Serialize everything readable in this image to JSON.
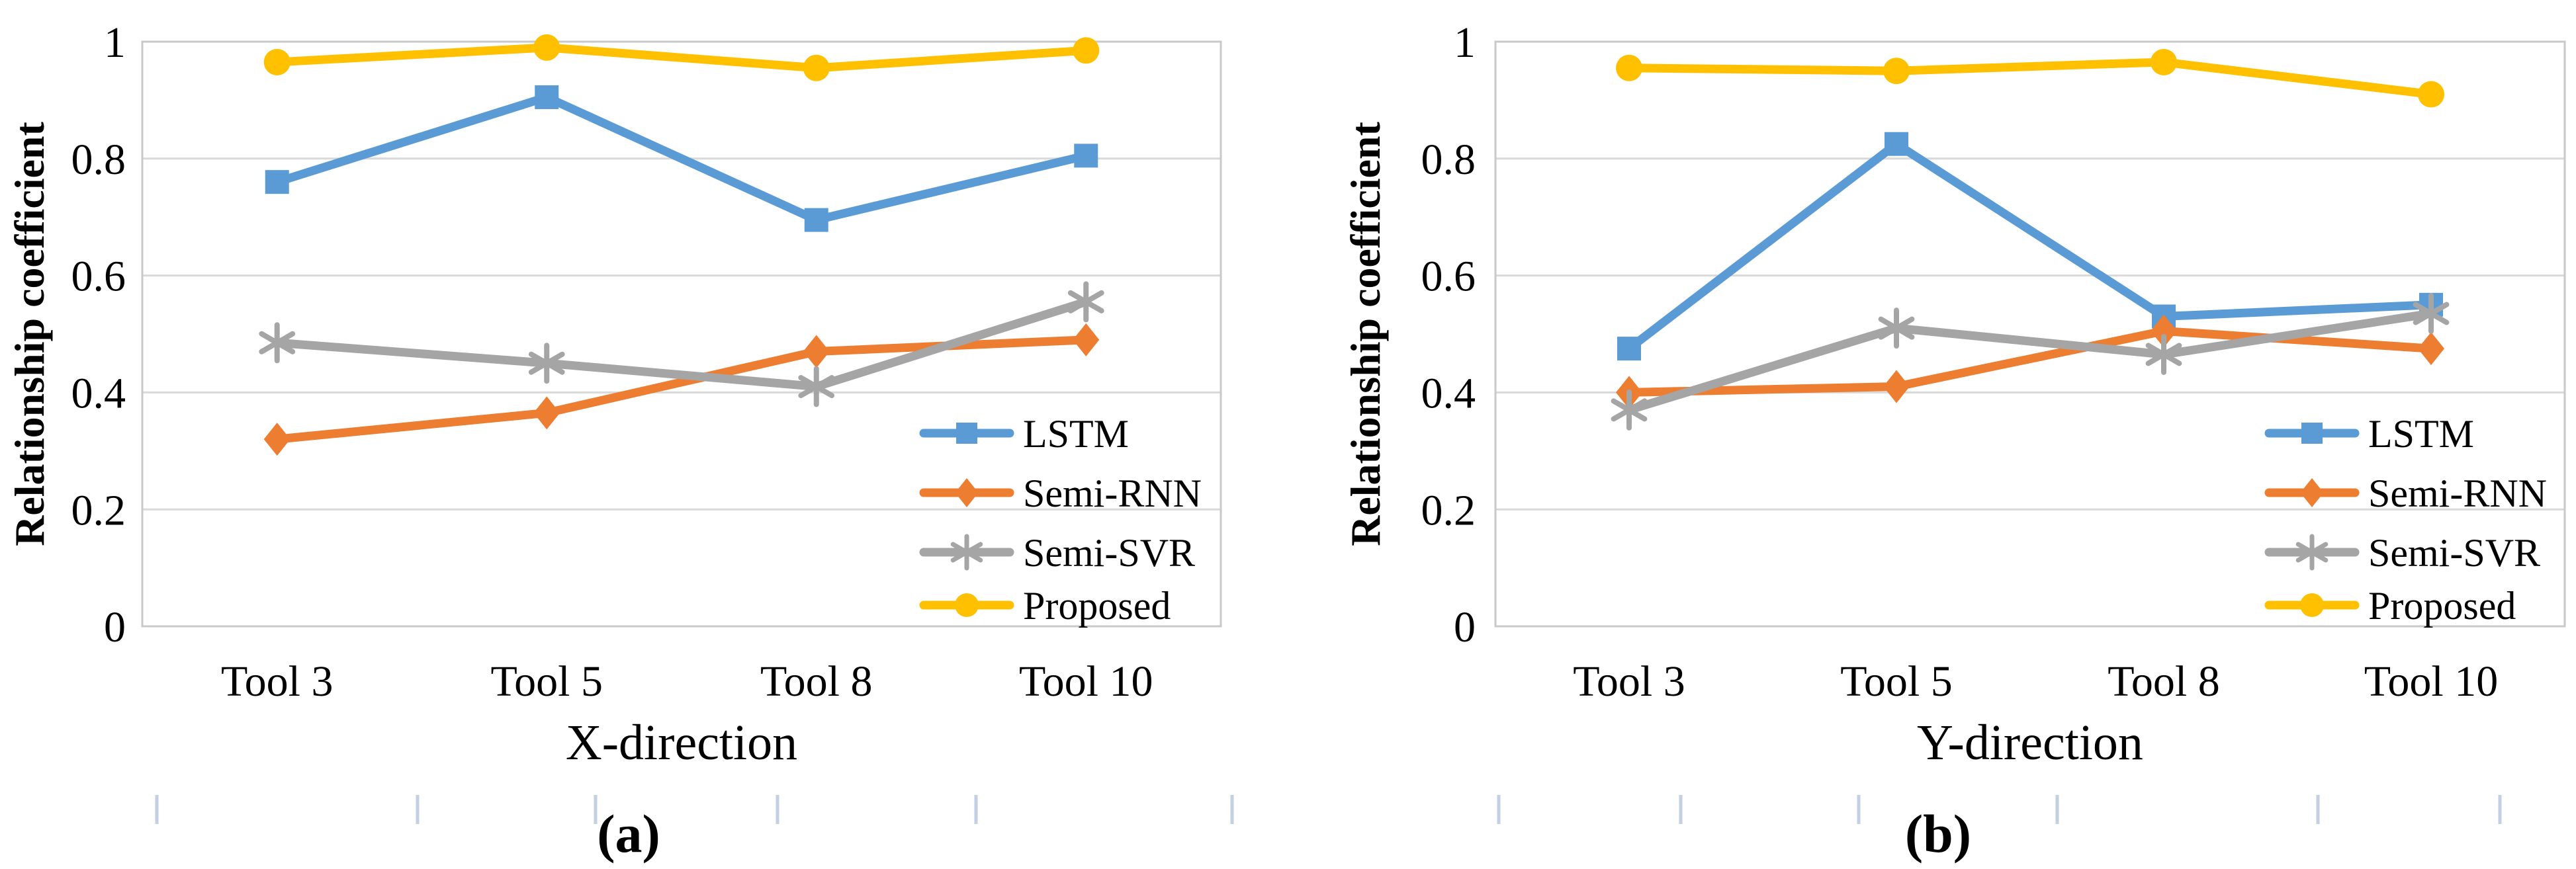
{
  "figure": {
    "description": "Two line charts comparing relationship coefficients of four models across tools",
    "panels": [
      {
        "caption": "(a)"
      },
      {
        "caption": "(b)"
      }
    ]
  },
  "colors": {
    "lstm_blue": "#5B9BD5",
    "semi_rnn_orange": "#ED7D31",
    "semi_svr_gray": "#A5A5A5",
    "proposed_yellow": "#FFC000",
    "gridline": "#D9D9D9",
    "plot_border": "#C9C9C9",
    "faint_tick": "#C3CFE2",
    "text": "#000000"
  },
  "chart_data": [
    {
      "type": "line",
      "caption": "(a)",
      "title": "",
      "xlabel": "X-direction",
      "ylabel": "Relationship coefficient",
      "categories": [
        "Tool 3",
        "Tool 5",
        "Tool 8",
        "Tool 10"
      ],
      "ylim": [
        0,
        1
      ],
      "yticks": [
        0,
        0.2,
        0.4,
        0.6,
        0.8,
        1
      ],
      "ytick_labels": [
        "0",
        "0.2",
        "0.4",
        "0.6",
        "0.8",
        "1"
      ],
      "grid": true,
      "legend_position": "lower-right",
      "series": [
        {
          "name": "LSTM",
          "marker": "square",
          "color": "#5B9BD5",
          "values": [
            0.76,
            0.905,
            0.695,
            0.805
          ]
        },
        {
          "name": "Semi-RNN",
          "marker": "diamond",
          "color": "#ED7D31",
          "values": [
            0.32,
            0.365,
            0.47,
            0.49
          ]
        },
        {
          "name": "Semi-SVR",
          "marker": "asterisk",
          "color": "#A5A5A5",
          "values": [
            0.485,
            0.45,
            0.41,
            0.555
          ]
        },
        {
          "name": "Proposed",
          "marker": "circle",
          "color": "#FFC000",
          "values": [
            0.965,
            0.99,
            0.955,
            0.985
          ]
        }
      ]
    },
    {
      "type": "line",
      "caption": "(b)",
      "title": "",
      "xlabel": "Y-direction",
      "ylabel": "Relationship coefficient",
      "categories": [
        "Tool 3",
        "Tool 5",
        "Tool 8",
        "Tool 10"
      ],
      "ylim": [
        0,
        1
      ],
      "yticks": [
        0,
        0.2,
        0.4,
        0.6,
        0.8,
        1
      ],
      "ytick_labels": [
        "0",
        "0.2",
        "0.4",
        "0.6",
        "0.8",
        "1"
      ],
      "grid": true,
      "legend_position": "lower-right",
      "series": [
        {
          "name": "LSTM",
          "marker": "square",
          "color": "#5B9BD5",
          "values": [
            0.475,
            0.825,
            0.53,
            0.55
          ]
        },
        {
          "name": "Semi-RNN",
          "marker": "diamond",
          "color": "#ED7D31",
          "values": [
            0.4,
            0.41,
            0.505,
            0.475
          ]
        },
        {
          "name": "Semi-SVR",
          "marker": "asterisk",
          "color": "#A5A5A5",
          "values": [
            0.37,
            0.51,
            0.465,
            0.535
          ]
        },
        {
          "name": "Proposed",
          "marker": "circle",
          "color": "#FFC000",
          "values": [
            0.955,
            0.95,
            0.965,
            0.91
          ]
        }
      ]
    }
  ]
}
